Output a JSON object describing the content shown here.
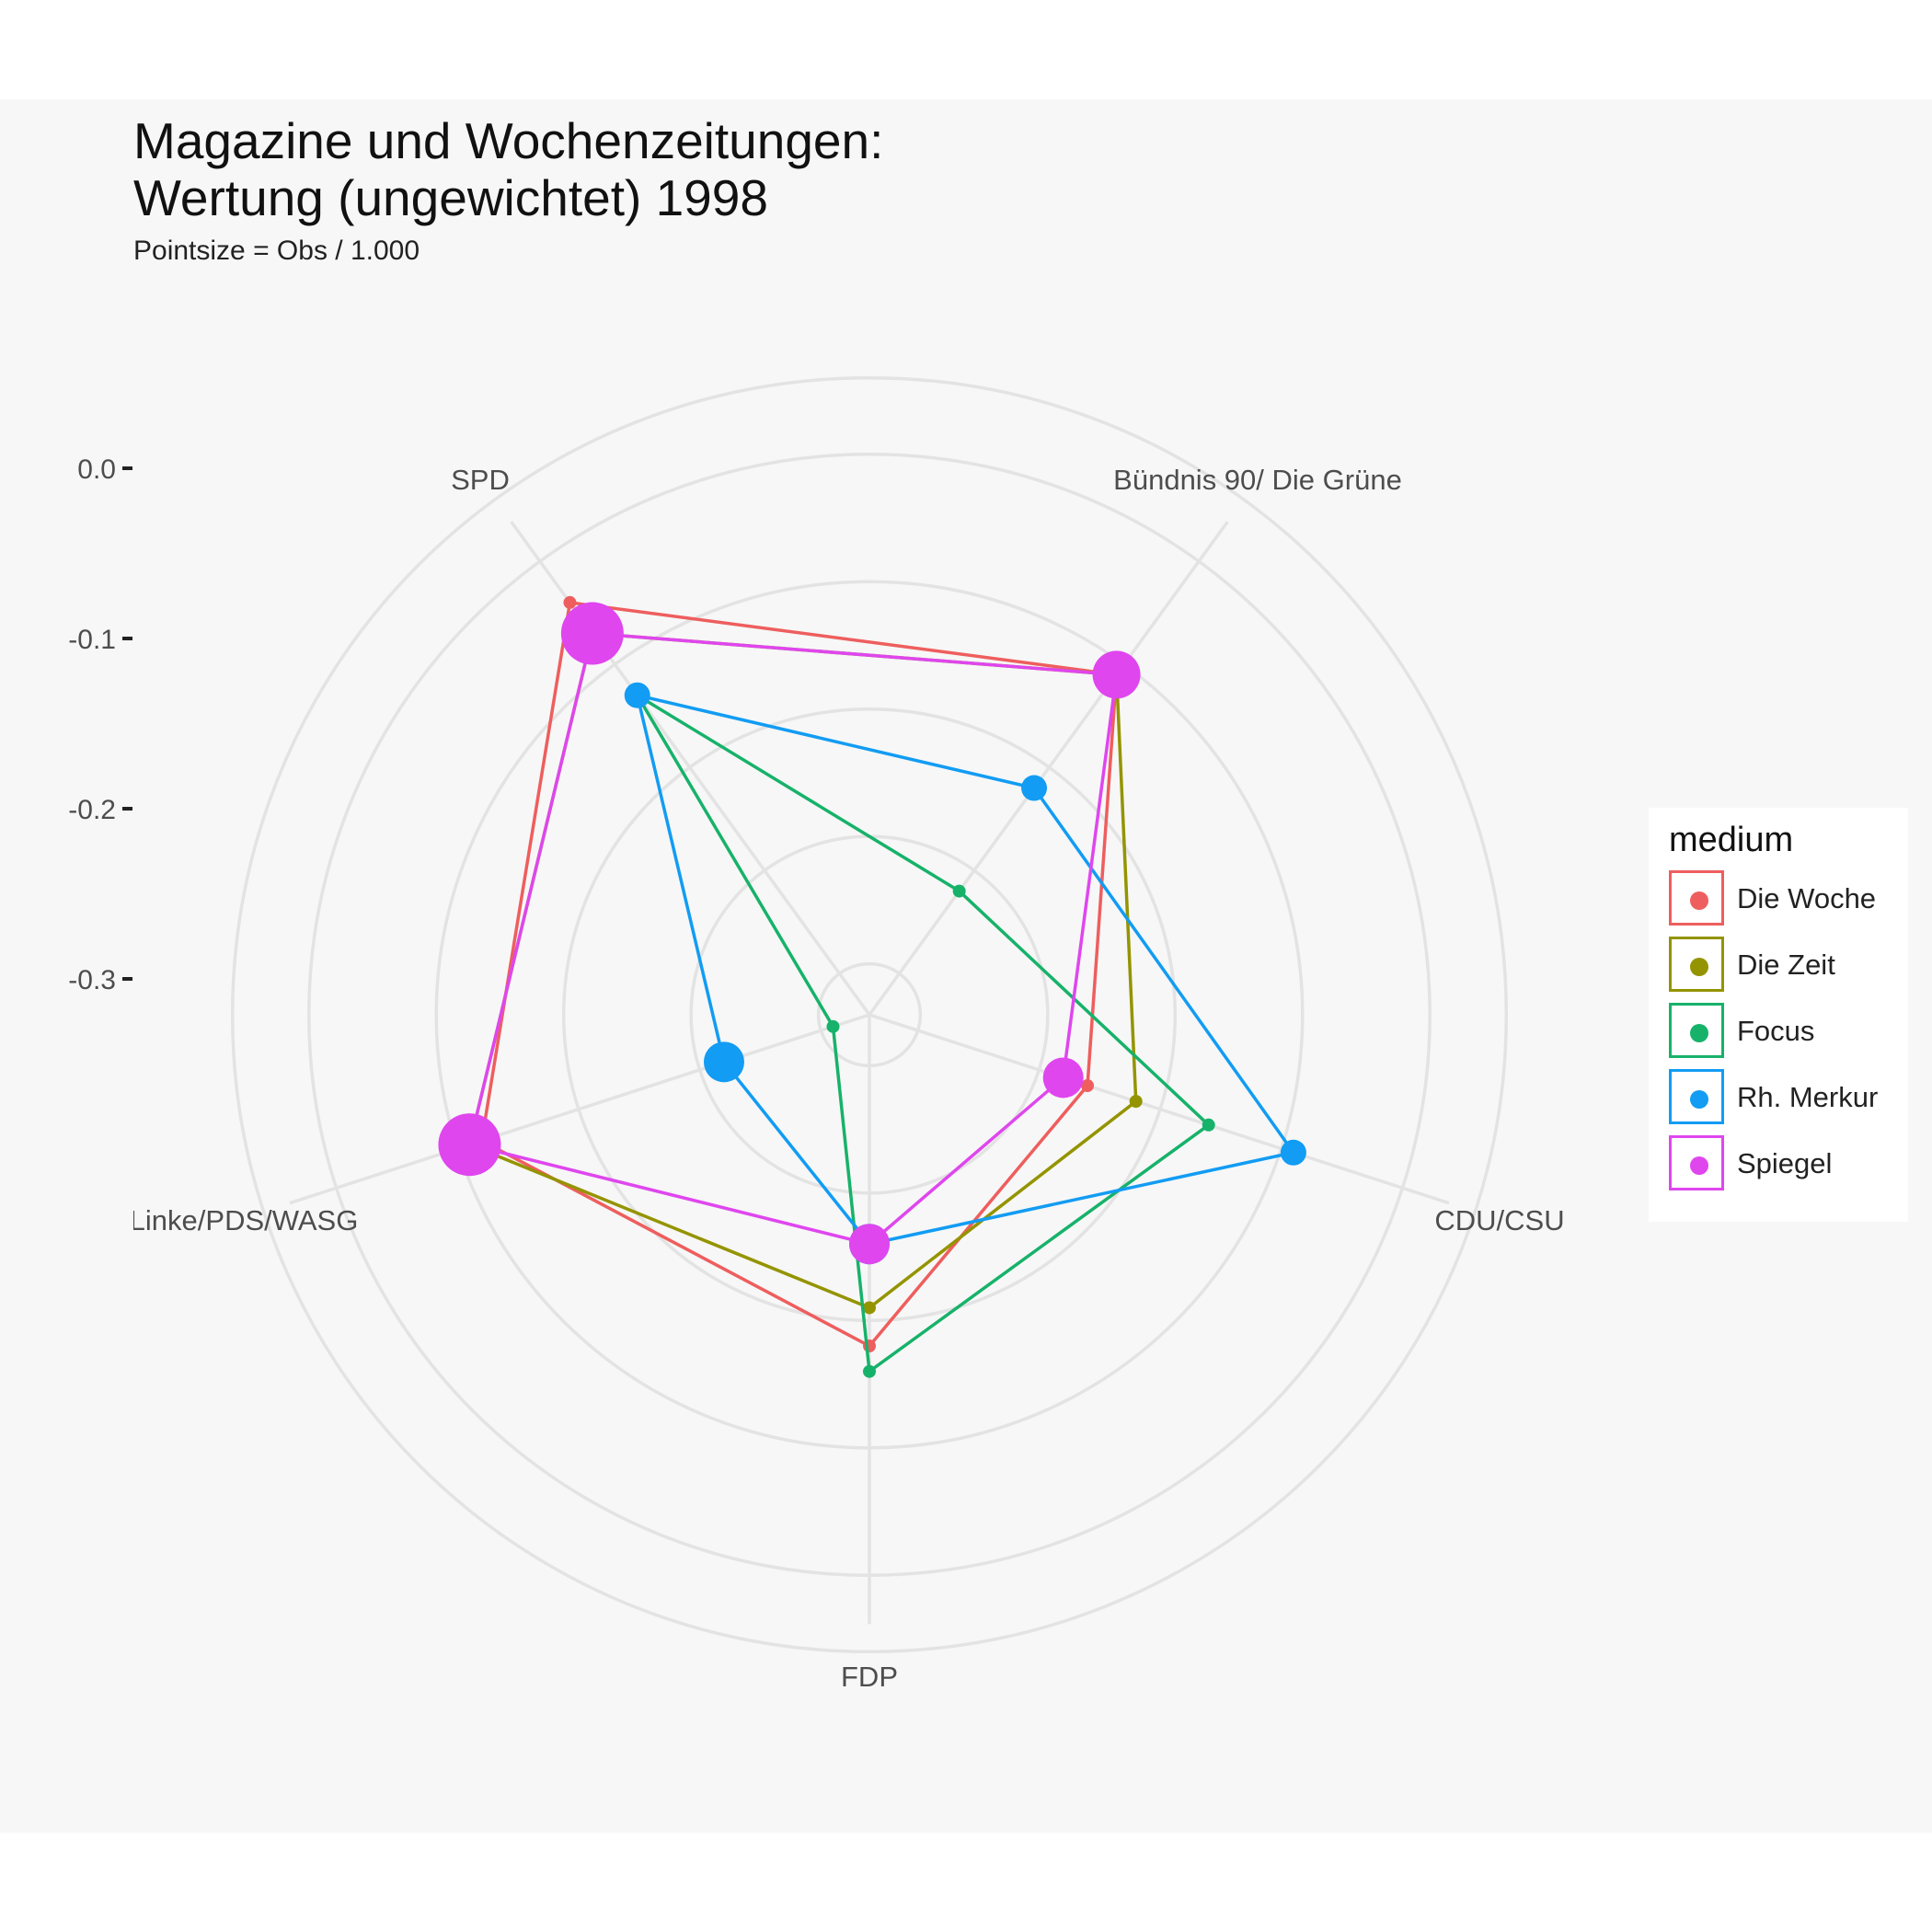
{
  "title": "Magazine und Wochenzeitungen:\nWertung (ungewichtet) 1998",
  "subtitle": "Pointsize = Obs / 1.000",
  "legend": {
    "title": "medium",
    "items": [
      {
        "label": "Die Woche",
        "color": "#ee5e5e"
      },
      {
        "label": "Die Zeit",
        "color": "#949400"
      },
      {
        "label": "Focus",
        "color": "#17b26a"
      },
      {
        "label": "Rh. Merkur",
        "color": "#129cf3"
      },
      {
        "label": "Spiegel",
        "color": "#df46ee"
      }
    ]
  },
  "chart_data": {
    "type": "radar",
    "axes": [
      "SPD",
      "Bündnis 90/ Die Grüne",
      "CDU/CSU",
      "FDP",
      "Linke/PDS/WASG"
    ],
    "radial_ticks": [
      "0.0",
      "-0.1",
      "-0.2",
      "-0.3"
    ],
    "radial_tick_values": [
      0.0,
      -0.1,
      -0.2,
      -0.3
    ],
    "rlim": [
      -0.44,
      0.08
    ],
    "grid": true,
    "legend_position": "right",
    "series": [
      {
        "name": "Die Woche",
        "color": "#ee5e5e",
        "values": [
          -0.04,
          -0.11,
          -0.26,
          -0.18,
          -0.12
        ],
        "sizes": [
          0,
          0,
          0,
          0,
          0
        ]
      },
      {
        "name": "Die Zeit",
        "color": "#949400",
        "values": [
          -0.07,
          -0.11,
          -0.22,
          -0.21,
          -0.11
        ],
        "sizes": [
          0,
          0,
          0,
          0,
          0
        ]
      },
      {
        "name": "Focus",
        "color": "#17b26a",
        "values": [
          -0.13,
          -0.32,
          -0.16,
          -0.16,
          -0.41
        ],
        "sizes": [
          0,
          0,
          0,
          0,
          0
        ]
      },
      {
        "name": "Rh. Merkur",
        "color": "#129cf3",
        "values": [
          -0.13,
          -0.22,
          -0.09,
          -0.26,
          -0.32
        ],
        "sizes": [
          1,
          1,
          1,
          2,
          2
        ]
      },
      {
        "name": "Spiegel",
        "color": "#df46ee",
        "values": [
          -0.07,
          -0.11,
          -0.28,
          -0.26,
          -0.11
        ],
        "sizes": [
          4,
          3,
          2,
          2,
          4
        ]
      }
    ]
  }
}
